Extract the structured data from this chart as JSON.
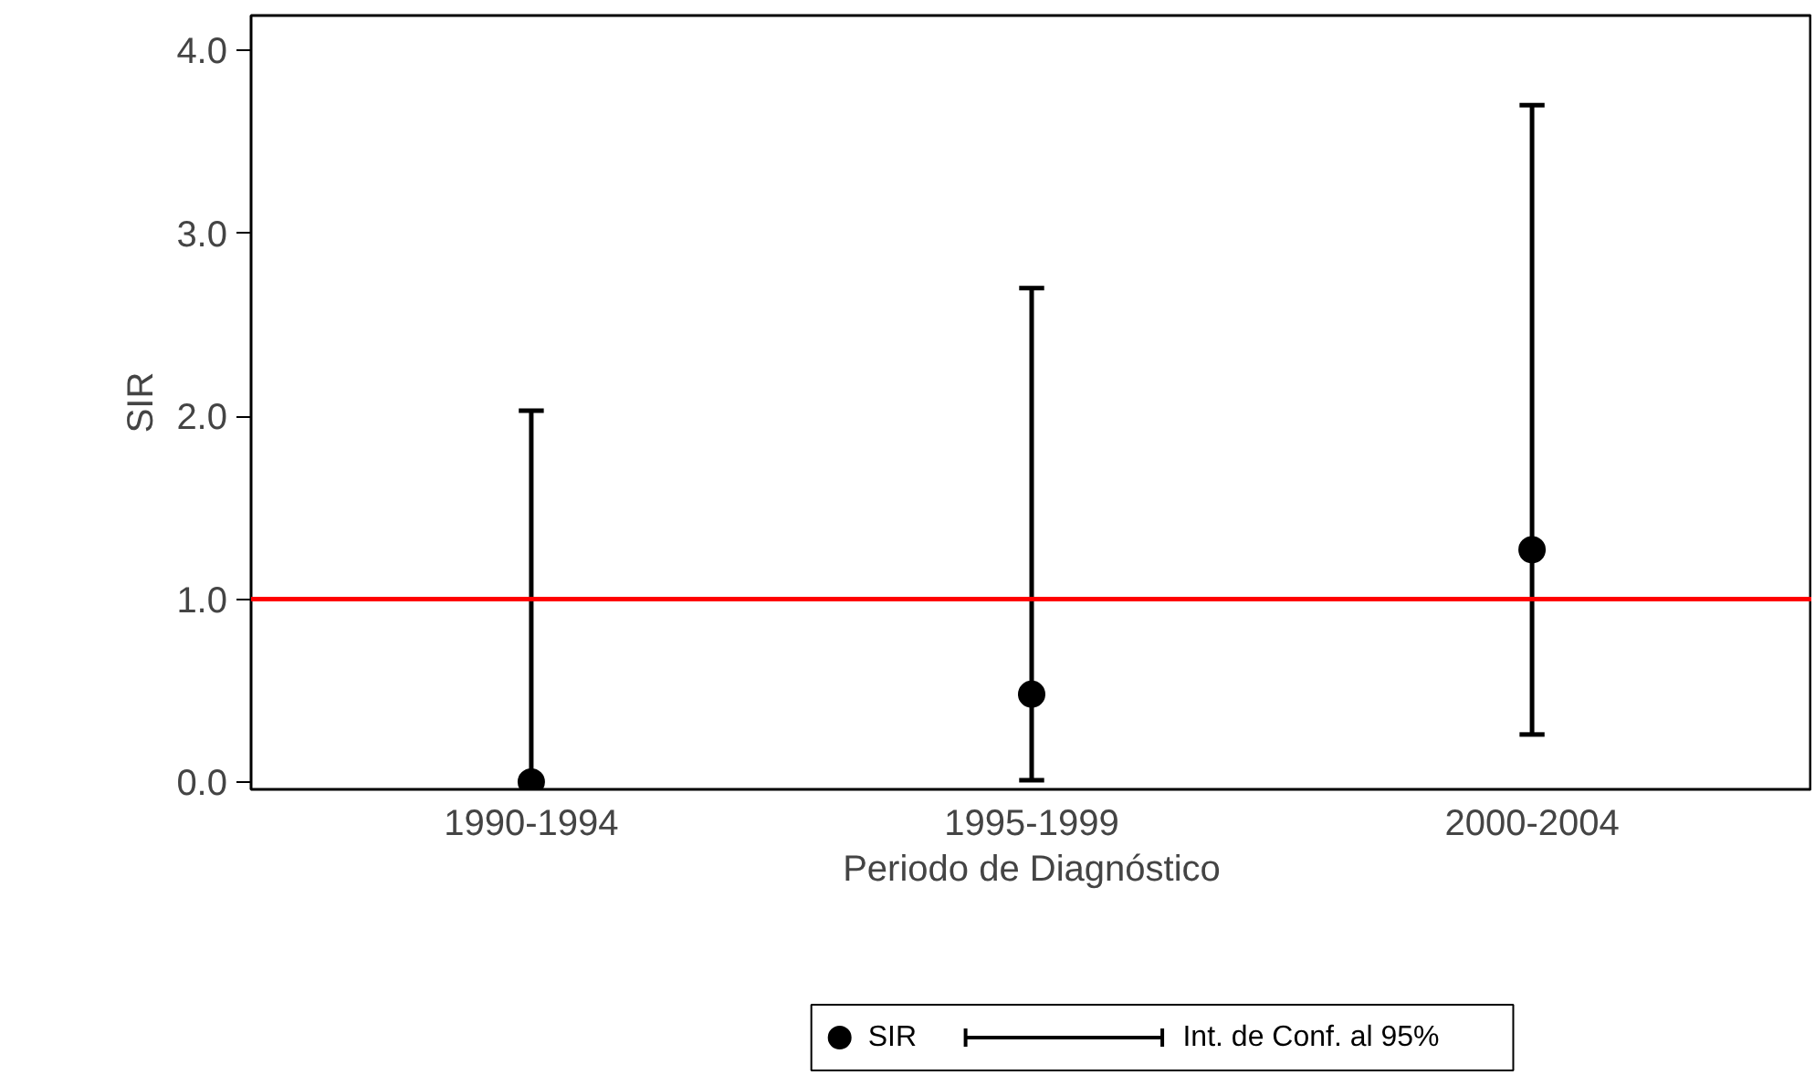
{
  "chart_data": {
    "type": "scatter",
    "xlabel": "Periodo de Diagnóstico",
    "ylabel": "SIR",
    "categories": [
      "1990-1994",
      "1995-1999",
      "2000-2004"
    ],
    "series": [
      {
        "name": "SIR",
        "color": "#000000",
        "values": [
          0.0,
          0.48,
          1.27
        ],
        "errors": [
          [
            0.0,
            2.03
          ],
          [
            0.01,
            2.7
          ],
          [
            0.26,
            3.7
          ]
        ]
      }
    ],
    "annotations": [
      "Int. de Conf. al 95%"
    ],
    "ylim": [
      -0.04,
      4.19
    ],
    "yticks": [
      {
        "value": 0,
        "label": "0.0"
      },
      {
        "value": 1,
        "label": "1.0"
      },
      {
        "value": 2,
        "label": "2.0"
      },
      {
        "value": 3,
        "label": "3.0"
      },
      {
        "value": 4,
        "label": "4.0"
      }
    ],
    "ref_lines": [
      {
        "axis": "y",
        "value": 1,
        "label": null,
        "color": "#ff0000"
      }
    ],
    "grid": false,
    "legend": "bottom",
    "marker": "circle"
  }
}
